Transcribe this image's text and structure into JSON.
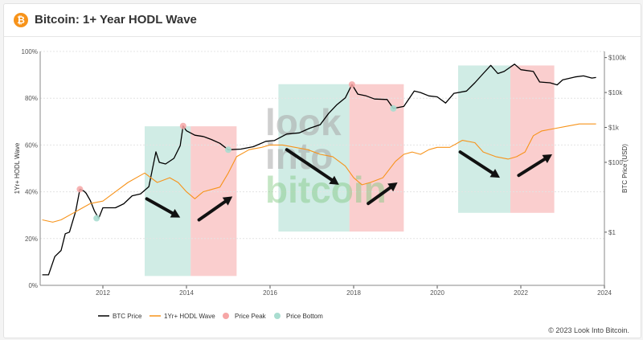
{
  "header": {
    "title": "Bitcoin: 1+ Year HODL Wave",
    "icon": "bitcoin-icon",
    "icon_glyph": "₿"
  },
  "watermark": {
    "line1": "look",
    "line2": "into",
    "line3": "bitcoin"
  },
  "copyright": "© 2023 Look Into Bitcoin.",
  "colors": {
    "price": "#000000",
    "hodl": "#f7931a",
    "peak": "#f6a6a6",
    "bottom": "#a9ddd0",
    "arrow": "#111111",
    "grid": "#e4e4e4"
  },
  "chart_data": {
    "type": "line",
    "title": "Bitcoin: 1+ Year HODL Wave",
    "xlim": [
      2010.5,
      2024.0
    ],
    "x_ticks": [
      "2012",
      "2014",
      "2016",
      "2018",
      "2020",
      "2022",
      "2024"
    ],
    "ylabel_left": "1Yr+ HODL Wave",
    "ylim_left": [
      0,
      100
    ],
    "left_ticks": [
      "0%",
      "20%",
      "40%",
      "60%",
      "80%",
      "100%"
    ],
    "ylabel_right": "BTC Price (USD)",
    "yscale_right": "log",
    "ylim_right": [
      0.03,
      150000
    ],
    "right_ticks": [
      "$1",
      "$100",
      "$1k",
      "$10k",
      "$100k"
    ],
    "grid": true,
    "legend_position": "bottom",
    "legend": [
      "BTC Price",
      "1Yr+ HODL Wave",
      "Price Peak",
      "Price Bottom"
    ],
    "series": [
      {
        "name": "BTC Price",
        "axis": "right",
        "points": [
          [
            2010.55,
            0.06
          ],
          [
            2010.7,
            0.06
          ],
          [
            2010.85,
            0.2
          ],
          [
            2011.0,
            0.3
          ],
          [
            2011.1,
            0.9
          ],
          [
            2011.2,
            1.0
          ],
          [
            2011.35,
            4
          ],
          [
            2011.45,
            17
          ],
          [
            2011.55,
            15
          ],
          [
            2011.6,
            13
          ],
          [
            2011.7,
            8
          ],
          [
            2011.8,
            4
          ],
          [
            2011.9,
            2.5
          ],
          [
            2012.0,
            5
          ],
          [
            2012.3,
            5
          ],
          [
            2012.5,
            6.5
          ],
          [
            2012.7,
            11
          ],
          [
            2012.9,
            12.5
          ],
          [
            2013.1,
            20
          ],
          [
            2013.27,
            200
          ],
          [
            2013.35,
            100
          ],
          [
            2013.5,
            90
          ],
          [
            2013.7,
            130
          ],
          [
            2013.85,
            300
          ],
          [
            2013.92,
            1100
          ],
          [
            2014.0,
            800
          ],
          [
            2014.2,
            600
          ],
          [
            2014.4,
            550
          ],
          [
            2014.6,
            450
          ],
          [
            2014.8,
            350
          ],
          [
            2015.0,
            230
          ],
          [
            2015.3,
            240
          ],
          [
            2015.6,
            280
          ],
          [
            2015.9,
            400
          ],
          [
            2016.1,
            420
          ],
          [
            2016.4,
            650
          ],
          [
            2016.7,
            700
          ],
          [
            2016.95,
            950
          ],
          [
            2017.2,
            1200
          ],
          [
            2017.4,
            2500
          ],
          [
            2017.6,
            4500
          ],
          [
            2017.8,
            7000
          ],
          [
            2017.96,
            17000
          ],
          [
            2018.1,
            9000
          ],
          [
            2018.3,
            8000
          ],
          [
            2018.5,
            6500
          ],
          [
            2018.8,
            6300
          ],
          [
            2018.95,
            3500
          ],
          [
            2019.2,
            4000
          ],
          [
            2019.45,
            11000
          ],
          [
            2019.6,
            10000
          ],
          [
            2019.8,
            8000
          ],
          [
            2020.0,
            7500
          ],
          [
            2020.2,
            5000
          ],
          [
            2020.4,
            9500
          ],
          [
            2020.7,
            11000
          ],
          [
            2020.9,
            19000
          ],
          [
            2021.1,
            35000
          ],
          [
            2021.28,
            60000
          ],
          [
            2021.45,
            35000
          ],
          [
            2021.6,
            40000
          ],
          [
            2021.85,
            65000
          ],
          [
            2022.0,
            45000
          ],
          [
            2022.3,
            40000
          ],
          [
            2022.45,
            20000
          ],
          [
            2022.7,
            19000
          ],
          [
            2022.87,
            16500
          ],
          [
            2023.0,
            23000
          ],
          [
            2023.3,
            28000
          ],
          [
            2023.5,
            30000
          ],
          [
            2023.7,
            26000
          ],
          [
            2023.8,
            27000
          ]
        ]
      },
      {
        "name": "1Yr+ HODL Wave",
        "axis": "left",
        "points": [
          [
            2010.55,
            28
          ],
          [
            2010.8,
            27
          ],
          [
            2011.0,
            28
          ],
          [
            2011.3,
            31
          ],
          [
            2011.5,
            33
          ],
          [
            2011.7,
            35
          ],
          [
            2012.0,
            36
          ],
          [
            2012.3,
            40
          ],
          [
            2012.6,
            44
          ],
          [
            2012.9,
            47
          ],
          [
            2013.0,
            48
          ],
          [
            2013.3,
            44
          ],
          [
            2013.6,
            46
          ],
          [
            2013.8,
            44
          ],
          [
            2014.0,
            40
          ],
          [
            2014.2,
            37
          ],
          [
            2014.4,
            40
          ],
          [
            2014.6,
            41
          ],
          [
            2014.8,
            42
          ],
          [
            2015.0,
            48
          ],
          [
            2015.2,
            55
          ],
          [
            2015.5,
            58
          ],
          [
            2015.8,
            59
          ],
          [
            2016.0,
            60
          ],
          [
            2016.3,
            60
          ],
          [
            2016.6,
            59
          ],
          [
            2016.9,
            58
          ],
          [
            2017.2,
            56
          ],
          [
            2017.5,
            55
          ],
          [
            2017.8,
            51
          ],
          [
            2018.0,
            46
          ],
          [
            2018.2,
            43
          ],
          [
            2018.4,
            44
          ],
          [
            2018.7,
            46
          ],
          [
            2019.0,
            53
          ],
          [
            2019.2,
            56
          ],
          [
            2019.4,
            57
          ],
          [
            2019.6,
            56
          ],
          [
            2019.8,
            58
          ],
          [
            2020.0,
            59
          ],
          [
            2020.3,
            59
          ],
          [
            2020.6,
            62
          ],
          [
            2020.9,
            61
          ],
          [
            2021.1,
            57
          ],
          [
            2021.4,
            55
          ],
          [
            2021.7,
            54
          ],
          [
            2021.9,
            55
          ],
          [
            2022.1,
            57
          ],
          [
            2022.3,
            64
          ],
          [
            2022.5,
            66
          ],
          [
            2022.8,
            67
          ],
          [
            2023.1,
            68
          ],
          [
            2023.4,
            69
          ],
          [
            2023.6,
            69
          ],
          [
            2023.8,
            69
          ]
        ]
      }
    ],
    "bands": [
      {
        "type": "Price Bottom",
        "x": [
          2013.0,
          2014.1
        ],
        "y": [
          4,
          68
        ]
      },
      {
        "type": "Price Peak",
        "x": [
          2014.1,
          2015.2
        ],
        "y": [
          4,
          68
        ]
      },
      {
        "type": "Price Bottom",
        "x": [
          2016.2,
          2017.9
        ],
        "y": [
          23,
          86
        ]
      },
      {
        "type": "Price Peak",
        "x": [
          2017.9,
          2019.2
        ],
        "y": [
          23,
          86
        ]
      },
      {
        "type": "Price Bottom",
        "x": [
          2020.5,
          2021.75
        ],
        "y": [
          31,
          94
        ]
      },
      {
        "type": "Price Peak",
        "x": [
          2021.75,
          2022.8
        ],
        "y": [
          31,
          94
        ]
      }
    ],
    "peak_markers": [
      [
        2011.45,
        17
      ],
      [
        2013.92,
        1100
      ],
      [
        2017.96,
        17000
      ]
    ],
    "bottom_markers": [
      [
        2011.85,
        2.5
      ],
      [
        2015.0,
        230
      ],
      [
        2018.95,
        3500
      ]
    ],
    "arrows": [
      {
        "from": [
          2013.05,
          37
        ],
        "to": [
          2013.85,
          29
        ]
      },
      {
        "from": [
          2014.3,
          28
        ],
        "to": [
          2015.1,
          38
        ]
      },
      {
        "from": [
          2016.4,
          58
        ],
        "to": [
          2017.65,
          43
        ]
      },
      {
        "from": [
          2018.35,
          35
        ],
        "to": [
          2019.05,
          44
        ]
      },
      {
        "from": [
          2020.55,
          57
        ],
        "to": [
          2021.5,
          46
        ]
      },
      {
        "from": [
          2021.95,
          47
        ],
        "to": [
          2022.75,
          56
        ]
      }
    ]
  }
}
